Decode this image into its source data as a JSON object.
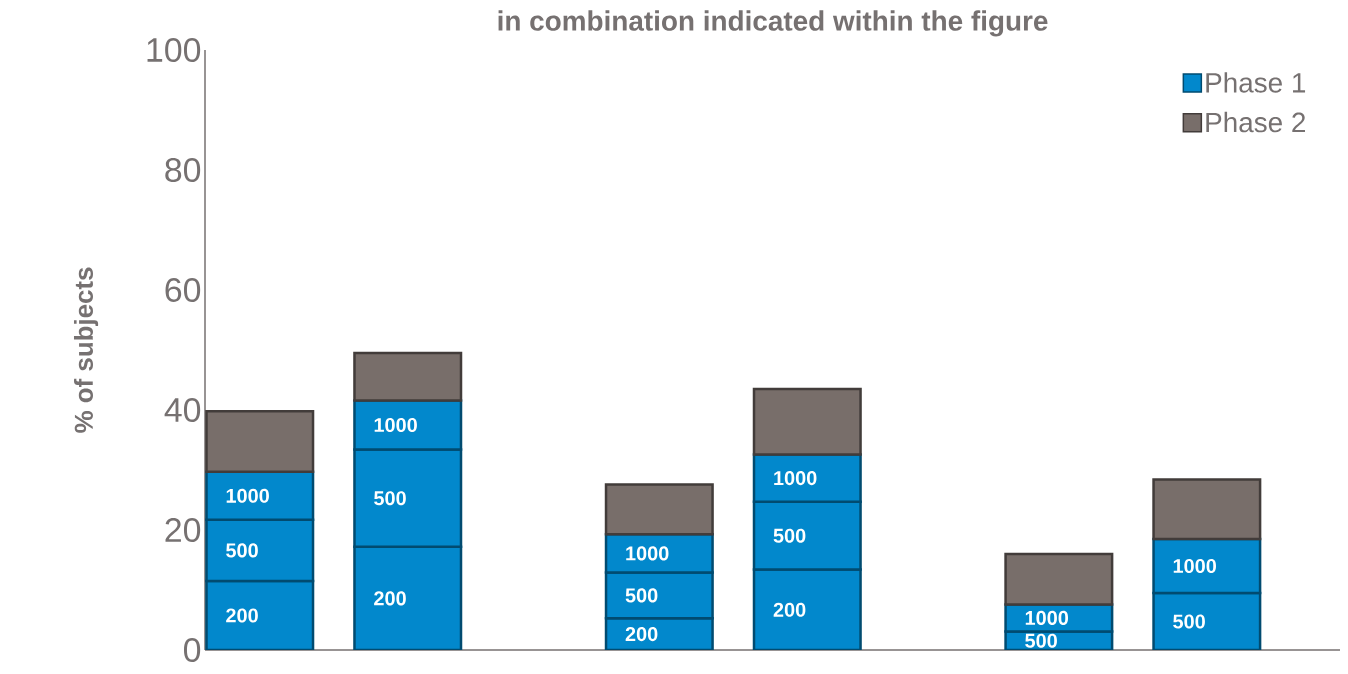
{
  "chart_data": {
    "type": "bar",
    "stacked": true,
    "title": "in combination indicated within the figure",
    "ylabel": "% of subjects",
    "categories": [
      null,
      null,
      null,
      null,
      null,
      null
    ],
    "series": [
      {
        "name": "Phase 1",
        "color": "#0288cc",
        "values": [
          11.5,
          17.2,
          5.3,
          13.4,
          null,
          null
        ]
      },
      {
        "color": "#0288cc",
        "values": [
          10.2,
          16.2,
          7.6,
          11.3,
          3.1,
          9.5
        ]
      },
      {
        "color": "#0288cc",
        "values": [
          8.0,
          8.2,
          6.4,
          7.9,
          4.5,
          9.0
        ]
      },
      {
        "name": "Phase 2",
        "color": "#786e6a",
        "values": [
          10.1,
          7.9,
          8.3,
          10.9,
          8.4,
          9.9
        ]
      }
    ],
    "annotations": [
      "200",
      "500",
      "1000",
      "200",
      "500",
      "1000",
      "200",
      "500",
      "1000",
      "200",
      "500",
      "1000",
      "500",
      "1000",
      "500",
      "1000"
    ],
    "ylim": [
      0,
      100
    ],
    "yticks": [
      0,
      20,
      40,
      60,
      80,
      100
    ],
    "legend": "top right"
  }
}
